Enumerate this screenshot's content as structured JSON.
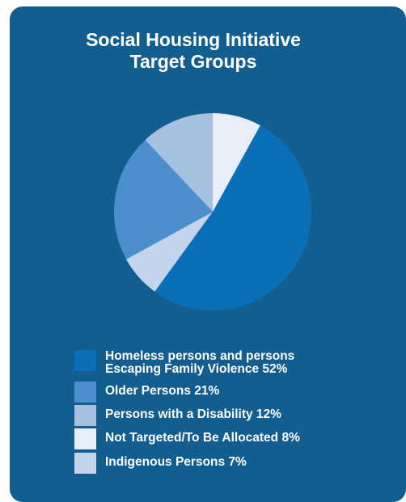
{
  "colors": {
    "background": "#125e90",
    "homeless": "#0a6fb9",
    "older": "#4b90cc",
    "disability": "#a6c0df",
    "not_targeted": "#e8eef8",
    "indigenous": "#c4d4ec"
  },
  "chart_data": {
    "type": "pie",
    "title_lines": [
      "Social Housing Initiative",
      "Target Groups"
    ],
    "slices": [
      {
        "label_lines": [
          "Homeless persons and persons",
          "Escaping Family Violence 52%"
        ],
        "value": 52,
        "color": "#0a6fb9"
      },
      {
        "label_lines": [
          "Indigenous Persons 7%"
        ],
        "value": 7,
        "color": "#c4d4ec"
      },
      {
        "label_lines": [
          "Older Persons 21%"
        ],
        "value": 21,
        "color": "#4b90cc"
      },
      {
        "label_lines": [
          "Persons with a Disability 12%"
        ],
        "value": 12,
        "color": "#a6c0df"
      },
      {
        "label_lines": [
          "Not Targeted/To Be Allocated 8%"
        ],
        "value": 8,
        "color": "#e8eef8"
      }
    ],
    "legend_order": [
      0,
      2,
      3,
      4,
      1
    ]
  }
}
